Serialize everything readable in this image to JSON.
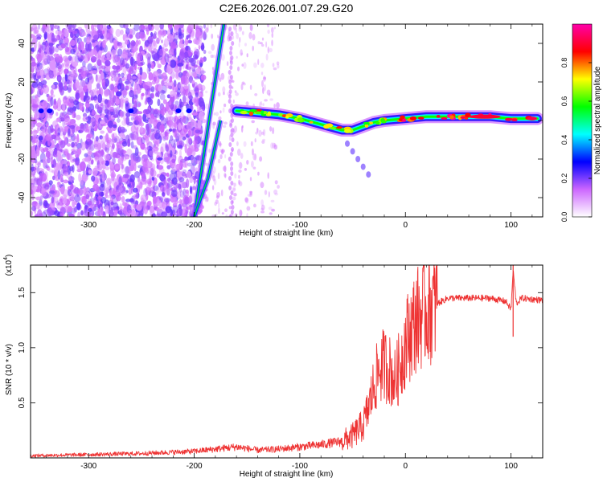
{
  "figure": {
    "title": "C2E6.2026.001.07.29.G20"
  },
  "chart_data": [
    {
      "type": "heatmap",
      "xlabel": "Height of straight line (km)",
      "ylabel": "Frequency (Hz)",
      "xlim": [
        -355,
        130
      ],
      "ylim": [
        -50,
        50
      ],
      "xticks": [
        -300,
        -200,
        -100,
        0,
        100
      ],
      "xticklabels": [
        "-300",
        "-200",
        "-100",
        "0",
        "100"
      ],
      "yticks": [
        -40,
        -20,
        0,
        20,
        40
      ],
      "yticklabels": [
        "-40",
        "-20",
        "0",
        "20",
        "40"
      ],
      "colorbar": {
        "label": "Normalized spectral amplitude",
        "range": [
          0,
          1
        ],
        "ticks": [
          0.0,
          0.2,
          0.4,
          0.6,
          0.8
        ],
        "ticklabels": [
          "0.0",
          "0.2",
          "0.4",
          "0.6",
          "0.8"
        ],
        "colormap": [
          "#ffffff",
          "#cc66ff",
          "#0000ff",
          "#00ffff",
          "#00ff00",
          "#ffff00",
          "#ff0000",
          "#ff00aa"
        ]
      },
      "ridge": {
        "name": "dominant frequency trace",
        "x": [
          -160,
          -140,
          -120,
          -100,
          -80,
          -60,
          -50,
          -40,
          -30,
          -20,
          0,
          20,
          50,
          80,
          100,
          125
        ],
        "y": [
          5,
          4,
          3,
          1,
          -2,
          -5,
          -5,
          -3,
          -1,
          0,
          1,
          2,
          2,
          2,
          1,
          1
        ]
      },
      "diagonal_traces": [
        {
          "name": "rising trace",
          "x": [
            -200,
            -172
          ],
          "y": [
            -50,
            50
          ]
        },
        {
          "name": "descending trace",
          "x": [
            -175,
            -187,
            -200
          ],
          "y": [
            0,
            -30,
            -50
          ]
        }
      ]
    },
    {
      "type": "line",
      "xlabel": "Height of straight line (km)",
      "ylabel": "SNR (10 * v/v)",
      "y_multiplier": "(x10",
      "y_multiplier_exp": "4",
      "y_multiplier_close": ")",
      "xlim": [
        -355,
        130
      ],
      "ylim": [
        0,
        1.75
      ],
      "xticks": [
        -300,
        -200,
        -100,
        0,
        100
      ],
      "xticklabels": [
        "-300",
        "-200",
        "-100",
        "0",
        "100"
      ],
      "yticks": [
        0.5,
        1.0,
        1.5
      ],
      "yticklabels": [
        "0.5",
        "1.0",
        "1.5"
      ],
      "series": [
        {
          "name": "SNR",
          "color": "#ee3333",
          "x": [
            -355,
            -300,
            -250,
            -200,
            -160,
            -140,
            -120,
            -100,
            -80,
            -60,
            -50,
            -40,
            -35,
            -30,
            -25,
            -20,
            -15,
            -10,
            -5,
            0,
            10,
            20,
            30,
            40,
            60,
            80,
            95,
            100,
            102,
            105,
            110,
            130
          ],
          "y": [
            0.02,
            0.03,
            0.04,
            0.06,
            0.1,
            0.07,
            0.08,
            0.1,
            0.12,
            0.15,
            0.2,
            0.3,
            0.45,
            0.65,
            0.8,
            0.85,
            0.8,
            0.7,
            0.85,
            1.05,
            1.25,
            1.35,
            1.4,
            1.45,
            1.45,
            1.45,
            1.42,
            1.35,
            1.7,
            1.4,
            1.45,
            1.43
          ]
        }
      ]
    }
  ]
}
